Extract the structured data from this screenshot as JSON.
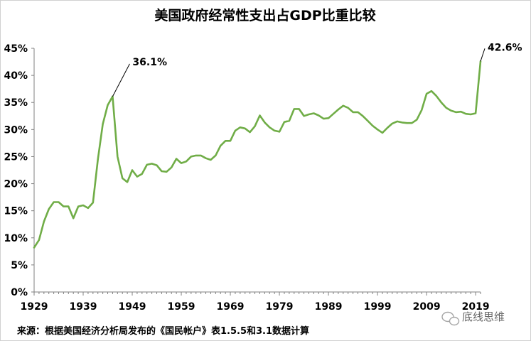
{
  "chart_data": {
    "type": "line",
    "title": "美国政府经常性支出占GDP比重比较",
    "source": "来源：根据美国经济分析局发布的《国民帐户》表1.5.5和3.1数据计算",
    "watermark": "底线思维",
    "xlabel": "",
    "ylabel": "",
    "x_ticks": [
      "1929",
      "1939",
      "1949",
      "1959",
      "1969",
      "1979",
      "1989",
      "1999",
      "2009",
      "2019"
    ],
    "y_ticks": [
      "0%",
      "5%",
      "10%",
      "15%",
      "20%",
      "25%",
      "30%",
      "35%",
      "40%",
      "45%"
    ],
    "xlim": [
      1929,
      2020
    ],
    "ylim": [
      0,
      45
    ],
    "grid": false,
    "line_color": "#70ad47",
    "annotations": [
      {
        "label": "36.1%",
        "x": 1945,
        "y": 36.1
      },
      {
        "label": "42.6%",
        "x": 2020,
        "y": 42.6
      }
    ],
    "x": [
      1929,
      1930,
      1931,
      1932,
      1933,
      1934,
      1935,
      1936,
      1937,
      1938,
      1939,
      1940,
      1941,
      1942,
      1943,
      1944,
      1945,
      1946,
      1947,
      1948,
      1949,
      1950,
      1951,
      1952,
      1953,
      1954,
      1955,
      1956,
      1957,
      1958,
      1959,
      1960,
      1961,
      1962,
      1963,
      1964,
      1965,
      1966,
      1967,
      1968,
      1969,
      1970,
      1971,
      1972,
      1973,
      1974,
      1975,
      1976,
      1977,
      1978,
      1979,
      1980,
      1981,
      1982,
      1983,
      1984,
      1985,
      1986,
      1987,
      1988,
      1989,
      1990,
      1991,
      1992,
      1993,
      1994,
      1995,
      1996,
      1997,
      1998,
      1999,
      2000,
      2001,
      2002,
      2003,
      2004,
      2005,
      2006,
      2007,
      2008,
      2009,
      2010,
      2011,
      2012,
      2013,
      2014,
      2015,
      2016,
      2017,
      2018,
      2019,
      2020
    ],
    "y": [
      8.2,
      9.6,
      13.0,
      15.3,
      16.6,
      16.6,
      15.8,
      15.8,
      13.6,
      15.8,
      16.0,
      15.5,
      16.5,
      24.5,
      31.0,
      34.5,
      36.1,
      25.0,
      21.0,
      20.3,
      22.5,
      21.3,
      21.8,
      23.5,
      23.7,
      23.4,
      22.3,
      22.2,
      23.0,
      24.6,
      23.8,
      24.1,
      25.0,
      25.2,
      25.2,
      24.7,
      24.4,
      25.2,
      27.0,
      27.9,
      27.9,
      29.8,
      30.4,
      30.2,
      29.5,
      30.6,
      32.6,
      31.3,
      30.4,
      29.8,
      29.6,
      31.4,
      31.6,
      33.8,
      33.8,
      32.5,
      32.8,
      33.0,
      32.6,
      32.0,
      32.1,
      32.9,
      33.7,
      34.4,
      34.0,
      33.2,
      33.2,
      32.5,
      31.6,
      30.7,
      30.0,
      29.4,
      30.3,
      31.1,
      31.5,
      31.3,
      31.2,
      31.2,
      31.8,
      33.6,
      36.6,
      37.1,
      36.2,
      35.0,
      34.0,
      33.5,
      33.2,
      33.3,
      32.9,
      32.8,
      33.0,
      42.6
    ]
  }
}
